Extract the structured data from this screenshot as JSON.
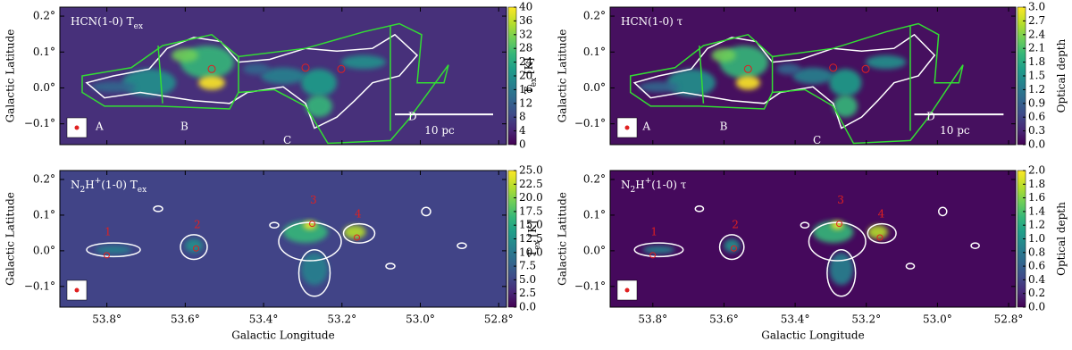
{
  "chart_data": [
    {
      "type": "heatmap",
      "colormap": "viridis",
      "title": [
        {
          "text": "HCN(1-0) "
        },
        {
          "text": "T"
        },
        {
          "text": "ex",
          "sub": true
        }
      ],
      "ylabel": "Galactic Latitude",
      "xlim": [
        53.92,
        52.78
      ],
      "ylim": [
        -0.158,
        0.225
      ],
      "yticks": [
        {
          "value": 0.2,
          "label": "0.2°"
        },
        {
          "value": 0.1,
          "label": "0.1°"
        },
        {
          "value": 0,
          "label": "0.0°"
        },
        {
          "value": -0.1,
          "label": "−0.1°"
        }
      ],
      "colorbar": {
        "label": [
          {
            "text": "T"
          },
          {
            "text": "ex",
            "sub": true
          },
          {
            "text": " [K]"
          }
        ],
        "lim": [
          0,
          40
        ],
        "ticks": [
          0,
          4,
          8,
          12,
          16,
          20,
          24,
          28,
          32,
          36,
          40
        ]
      },
      "region_labels": [
        "A",
        "B",
        "C",
        "D"
      ],
      "scale_bar": "10 pc"
    },
    {
      "type": "heatmap",
      "colormap": "viridis",
      "title": [
        {
          "text": "HCN(1-0) "
        },
        {
          "text": "τ"
        }
      ],
      "ylabel": "Galactic Latitude",
      "xlim": [
        53.92,
        52.78
      ],
      "ylim": [
        -0.158,
        0.225
      ],
      "yticks": [
        {
          "value": 0.2,
          "label": "0.2°"
        },
        {
          "value": 0.1,
          "label": "0.1°"
        },
        {
          "value": 0,
          "label": "0.0°"
        },
        {
          "value": -0.1,
          "label": "−0.1°"
        }
      ],
      "colorbar": {
        "label": [
          {
            "text": "Optical depth"
          }
        ],
        "lim": [
          0,
          3.0
        ],
        "ticks": [
          {
            "value": 0,
            "label": "0.0"
          },
          {
            "value": 0.3,
            "label": "0.3"
          },
          {
            "value": 0.6,
            "label": "0.6"
          },
          {
            "value": 0.9,
            "label": "0.9"
          },
          {
            "value": 1.2,
            "label": "1.2"
          },
          {
            "value": 1.5,
            "label": "1.5"
          },
          {
            "value": 1.8,
            "label": "1.8"
          },
          {
            "value": 2.1,
            "label": "2.1"
          },
          {
            "value": 2.4,
            "label": "2.4"
          },
          {
            "value": 2.7,
            "label": "2.7"
          },
          {
            "value": 3.0,
            "label": "3.0"
          }
        ]
      },
      "region_labels": [
        "A",
        "B",
        "C",
        "D"
      ],
      "scale_bar": "10 pc"
    },
    {
      "type": "heatmap",
      "colormap": "viridis",
      "title": [
        {
          "text": "N"
        },
        {
          "text": "2",
          "sub": true
        },
        {
          "text": "H"
        },
        {
          "text": "+",
          "sup": true
        },
        {
          "text": "(1-0) "
        },
        {
          "text": "T"
        },
        {
          "text": "ex",
          "sub": true
        }
      ],
      "xlabel": "Galactic Longitude",
      "ylabel": "Galactic Latitude",
      "xlim": [
        53.92,
        52.78
      ],
      "ylim": [
        -0.158,
        0.225
      ],
      "xticks": [
        {
          "value": 53.8,
          "label": "53.8°"
        },
        {
          "value": 53.6,
          "label": "53.6°"
        },
        {
          "value": 53.4,
          "label": "53.4°"
        },
        {
          "value": 53.2,
          "label": "53.2°"
        },
        {
          "value": 53.0,
          "label": "53.0°"
        },
        {
          "value": 52.8,
          "label": "52.8°"
        }
      ],
      "yticks": [
        {
          "value": 0.2,
          "label": "0.2°"
        },
        {
          "value": 0.1,
          "label": "0.1°"
        },
        {
          "value": 0,
          "label": "0.0°"
        },
        {
          "value": -0.1,
          "label": "−0.1°"
        }
      ],
      "colorbar": {
        "label": [
          {
            "text": "T"
          },
          {
            "text": "ex",
            "sub": true
          },
          {
            "text": " [K]"
          }
        ],
        "lim": [
          0,
          25.0
        ],
        "ticks": [
          {
            "value": 0,
            "label": "0.0"
          },
          {
            "value": 2.5,
            "label": "2.5"
          },
          {
            "value": 5,
            "label": "5.0"
          },
          {
            "value": 7.5,
            "label": "7.5"
          },
          {
            "value": 10,
            "label": "10.0"
          },
          {
            "value": 12.5,
            "label": "12.5"
          },
          {
            "value": 15,
            "label": "15.0"
          },
          {
            "value": 17.5,
            "label": "17.5"
          },
          {
            "value": 20,
            "label": "20.0"
          },
          {
            "value": 22.5,
            "label": "22.5"
          },
          {
            "value": 25,
            "label": "25.0"
          }
        ]
      },
      "clump_labels": [
        "1",
        "2",
        "3",
        "4"
      ]
    },
    {
      "type": "heatmap",
      "colormap": "viridis",
      "title": [
        {
          "text": "N"
        },
        {
          "text": "2",
          "sub": true
        },
        {
          "text": "H"
        },
        {
          "text": "+",
          "sup": true
        },
        {
          "text": "(1-0) "
        },
        {
          "text": "τ"
        }
      ],
      "xlabel": "Galactic Longitude",
      "ylabel": "Galactic Latitude",
      "xlim": [
        53.92,
        52.78
      ],
      "ylim": [
        -0.158,
        0.225
      ],
      "xticks": [
        {
          "value": 53.8,
          "label": "53.8°"
        },
        {
          "value": 53.6,
          "label": "53.6°"
        },
        {
          "value": 53.4,
          "label": "53.4°"
        },
        {
          "value": 53.2,
          "label": "53.2°"
        },
        {
          "value": 53.0,
          "label": "53.0°"
        },
        {
          "value": 52.8,
          "label": "52.8°"
        }
      ],
      "yticks": [
        {
          "value": 0.2,
          "label": "0.2°"
        },
        {
          "value": 0.1,
          "label": "0.1°"
        },
        {
          "value": 0,
          "label": "0.0°"
        },
        {
          "value": -0.1,
          "label": "−0.1°"
        }
      ],
      "colorbar": {
        "label": [
          {
            "text": "Optical depth"
          }
        ],
        "lim": [
          0,
          2.0
        ],
        "ticks": [
          {
            "value": 0,
            "label": "0.0"
          },
          {
            "value": 0.2,
            "label": "0.2"
          },
          {
            "value": 0.4,
            "label": "0.4"
          },
          {
            "value": 0.6,
            "label": "0.6"
          },
          {
            "value": 0.8,
            "label": "0.8"
          },
          {
            "value": 1.0,
            "label": "1.0"
          },
          {
            "value": 1.2,
            "label": "1.2"
          },
          {
            "value": 1.4,
            "label": "1.4"
          },
          {
            "value": 1.6,
            "label": "1.6"
          },
          {
            "value": 1.8,
            "label": "1.8"
          },
          {
            "value": 2.0,
            "label": "2.0"
          }
        ]
      },
      "clump_labels": [
        "1",
        "2",
        "3",
        "4"
      ]
    }
  ]
}
